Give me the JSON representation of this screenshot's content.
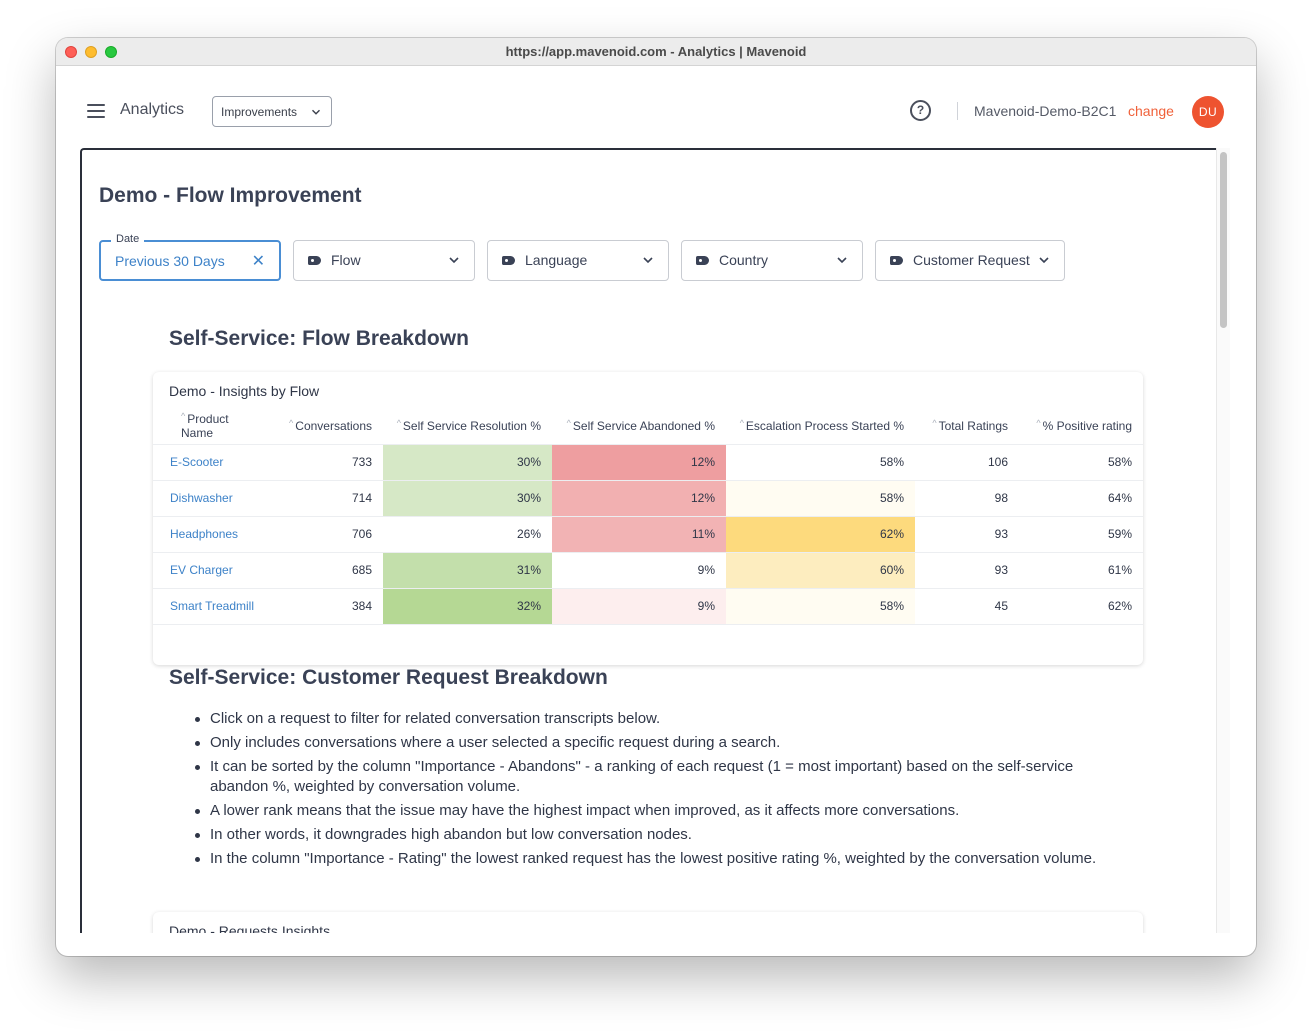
{
  "window": {
    "title": "https://app.mavenoid.com - Analytics | Mavenoid"
  },
  "appbar": {
    "title": "Analytics",
    "view_select": "Improvements",
    "org_name": "Mavenoid-Demo-B2C1",
    "change_label": "change",
    "avatar_initials": "DU",
    "help_glyph": "?"
  },
  "page": {
    "title": "Demo - Flow Improvement"
  },
  "filters": {
    "date": {
      "legend": "Date",
      "value": "Previous 30 Days",
      "clear_glyph": "✕"
    },
    "flow": "Flow",
    "language": "Language",
    "country": "Country",
    "customer_request": "Customer Request"
  },
  "flow_breakdown": {
    "section_title": "Self-Service: Flow Breakdown",
    "card_title": "Demo - Insights by Flow",
    "columns": [
      "Product Name",
      "Conversations",
      "Self Service Resolution %",
      "Self Service Abandoned %",
      "Escalation Process Started %",
      "Total Ratings",
      "% Positive rating"
    ],
    "rows": [
      {
        "product": "E-Scooter",
        "conversations": "733",
        "resolution": "30%",
        "abandoned": "12%",
        "escalation": "58%",
        "ratings": "106",
        "positive": "58%"
      },
      {
        "product": "Dishwasher",
        "conversations": "714",
        "resolution": "30%",
        "abandoned": "12%",
        "escalation": "58%",
        "ratings": "98",
        "positive": "64%"
      },
      {
        "product": "Headphones",
        "conversations": "706",
        "resolution": "26%",
        "abandoned": "11%",
        "escalation": "62%",
        "ratings": "93",
        "positive": "59%"
      },
      {
        "product": "EV Charger",
        "conversations": "685",
        "resolution": "31%",
        "abandoned": "9%",
        "escalation": "60%",
        "ratings": "93",
        "positive": "61%"
      },
      {
        "product": "Smart Treadmill",
        "conversations": "384",
        "resolution": "32%",
        "abandoned": "9%",
        "escalation": "58%",
        "ratings": "45",
        "positive": "62%"
      }
    ],
    "heat_colors": {
      "resolution": [
        "#d6e8c6",
        "#d6e8c6",
        "#ffffff",
        "#c3df ab",
        "#b5d894"
      ],
      "abandoned": [
        "#ee9ea0",
        "#f2b0b1",
        "#f2b3b4",
        "#ffffff",
        "#fdeeee"
      ],
      "escalation": [
        "#ffffff",
        "#fffcf2",
        "#fdda7d",
        "#fdedbf",
        "#fffcf2"
      ]
    }
  },
  "request_breakdown": {
    "section_title": "Self-Service: Customer Request Breakdown",
    "notes": [
      "Click on a request to filter for related conversation transcripts below.",
      "Only includes conversations where a user selected a specific request during a search.",
      "It can be sorted by the column \"Importance - Abandons\" - a ranking of each request (1 = most important) based on the self-service abandon %, weighted by conversation volume.",
      "A lower rank means that the issue may have the highest impact when improved, as it affects more conversations.",
      "In other words, it downgrades high abandon but low conversation nodes.",
      "In the column \"Importance - Rating\" the lowest ranked request has the lowest positive rating %, weighted by the conversation volume."
    ],
    "next_card_title": "Demo - Requests Insights"
  }
}
